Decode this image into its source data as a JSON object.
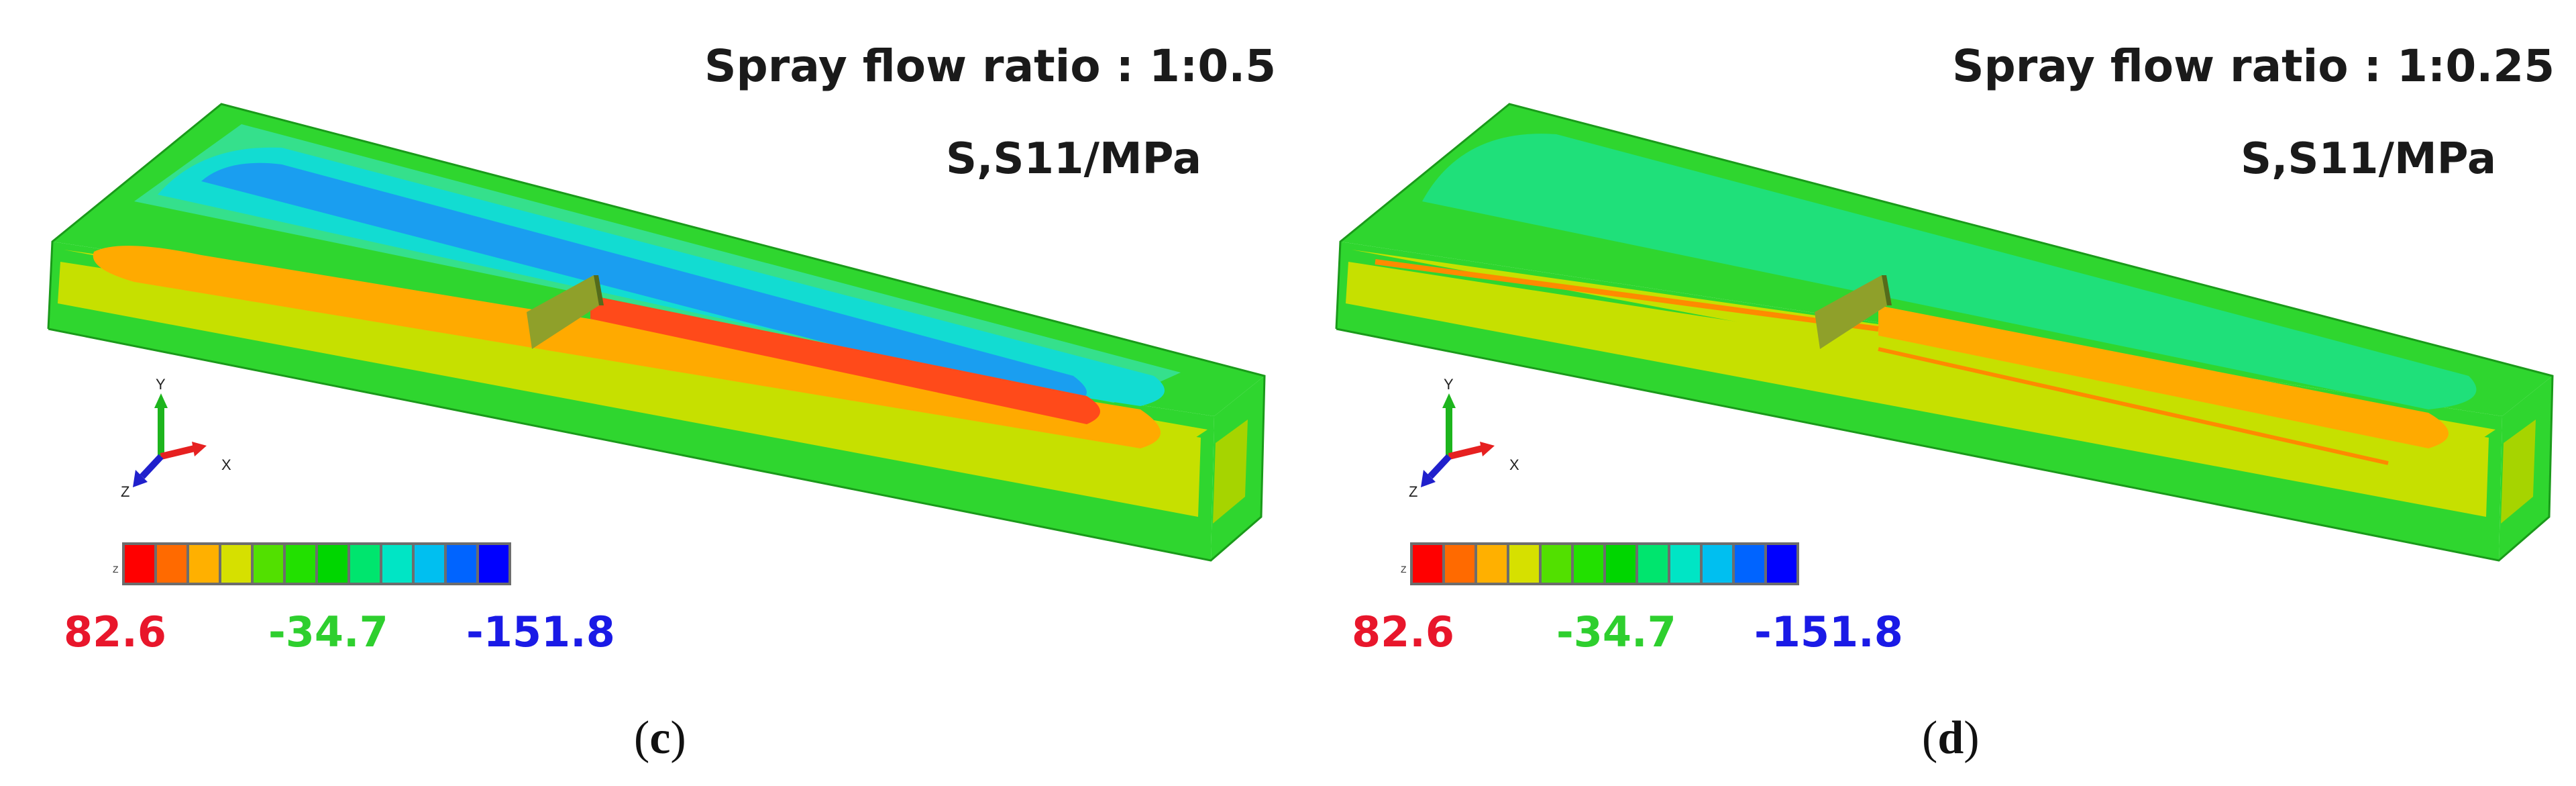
{
  "panel_c": {
    "title": "Spray flow ratio : 1:0.5",
    "units": "S,S11/MPa",
    "legend": {
      "max": "82.6",
      "mid": "-34.7",
      "min": "-151.8",
      "z_mark": "Z"
    },
    "caption_open": "(",
    "caption_letter": "c",
    "caption_close": ")"
  },
  "panel_d": {
    "title": "Spray flow ratio : 1:0.25",
    "units": "S,S11/MPa",
    "legend": {
      "max": "82.6",
      "mid": "-34.7",
      "min": "-151.8",
      "z_mark": "Z"
    },
    "caption_open": "(",
    "caption_letter": "d",
    "caption_close": ")"
  },
  "axis_triad": {
    "y": "Y",
    "x": "X",
    "z": "Z"
  },
  "colors": {
    "legend_scale": [
      "#ff0000",
      "#ff6a00",
      "#ffb000",
      "#d6e000",
      "#52e000",
      "#22e000",
      "#00d600",
      "#00e56e",
      "#00e5c5",
      "#00bff0",
      "#0064ff",
      "#0000ff"
    ],
    "max_value": "#e8162b",
    "mid_value": "#2ecf2e",
    "min_value": "#1a1ae6"
  }
}
